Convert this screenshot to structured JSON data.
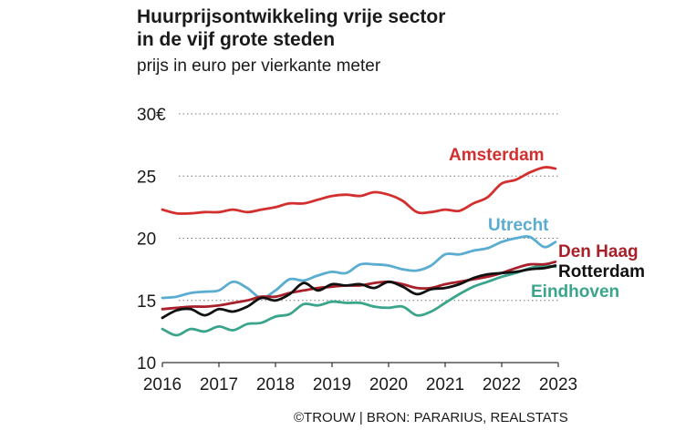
{
  "header": {
    "title_line1": "Huurprijsontwikkeling vrije sector",
    "title_line2": "in de vijf grote steden",
    "subtitle": "prijs in euro per vierkante meter"
  },
  "footer": {
    "credit": "©TROUW | BRON: PARARIUS, REALSTATS"
  },
  "chart_data": {
    "type": "line",
    "title": "Huurprijsontwikkeling vrije sector in de vijf grote steden",
    "subtitle": "prijs in euro per vierkante meter",
    "xlim": [
      2016,
      2023
    ],
    "ylim": [
      10,
      30
    ],
    "x_ticks": [
      "2016",
      "2017",
      "2018",
      "2019",
      "2020",
      "2021",
      "2022",
      "2023"
    ],
    "y_ticks": [
      {
        "value": 30,
        "label": "30€"
      },
      {
        "value": 25,
        "label": "25"
      },
      {
        "value": 20,
        "label": "20"
      },
      {
        "value": 15,
        "label": "15"
      },
      {
        "value": 10,
        "label": "10"
      }
    ],
    "grid": "horizontal dotted",
    "legend": "inline labels at line ends",
    "series": [
      {
        "name": "Amsterdam",
        "color": "#d32f2f",
        "x": [
          2016,
          2016.25,
          2016.5,
          2016.75,
          2017,
          2017.25,
          2017.5,
          2017.75,
          2018,
          2018.25,
          2018.5,
          2018.75,
          2019,
          2019.25,
          2019.5,
          2019.75,
          2020,
          2020.25,
          2020.5,
          2020.75,
          2021,
          2021.25,
          2021.5,
          2021.75,
          2022,
          2022.25,
          2022.5,
          2022.75,
          2022.95
        ],
        "values": [
          22.3,
          22.0,
          22.0,
          22.1,
          22.1,
          22.3,
          22.1,
          22.3,
          22.5,
          22.8,
          22.8,
          23.1,
          23.4,
          23.5,
          23.4,
          23.7,
          23.5,
          23.0,
          22.1,
          22.1,
          22.3,
          22.2,
          22.8,
          23.3,
          24.4,
          24.7,
          25.3,
          25.7,
          25.6
        ]
      },
      {
        "name": "Utrecht",
        "color": "#5aacd0",
        "x": [
          2016,
          2016.25,
          2016.5,
          2016.75,
          2017,
          2017.25,
          2017.5,
          2017.75,
          2018,
          2018.25,
          2018.5,
          2018.75,
          2019,
          2019.25,
          2019.5,
          2019.75,
          2020,
          2020.25,
          2020.5,
          2020.75,
          2021,
          2021.25,
          2021.5,
          2021.75,
          2022,
          2022.25,
          2022.5,
          2022.75,
          2022.95
        ],
        "values": [
          15.2,
          15.3,
          15.6,
          15.7,
          15.8,
          16.5,
          16.0,
          15.2,
          15.8,
          16.7,
          16.6,
          17.0,
          17.3,
          17.2,
          17.9,
          17.9,
          17.8,
          17.5,
          17.4,
          17.8,
          18.7,
          18.7,
          19.0,
          19.2,
          19.7,
          20.0,
          20.1,
          19.3,
          19.7
        ]
      },
      {
        "name": "Den Haag",
        "color": "#a8202a",
        "x": [
          2016,
          2016.25,
          2016.5,
          2016.75,
          2017,
          2017.25,
          2017.5,
          2017.75,
          2018,
          2018.25,
          2018.5,
          2018.75,
          2019,
          2019.25,
          2019.5,
          2019.75,
          2020,
          2020.25,
          2020.5,
          2020.75,
          2021,
          2021.25,
          2021.5,
          2021.75,
          2022,
          2022.25,
          2022.5,
          2022.75,
          2022.95
        ],
        "values": [
          14.3,
          14.4,
          14.5,
          14.5,
          14.6,
          14.8,
          15.0,
          15.3,
          15.3,
          15.6,
          15.8,
          16.0,
          16.1,
          16.2,
          16.2,
          16.4,
          16.5,
          16.3,
          16.0,
          16.0,
          16.3,
          16.5,
          16.7,
          16.9,
          17.2,
          17.6,
          17.9,
          17.9,
          18.1
        ]
      },
      {
        "name": "Rotterdam",
        "color": "#111111",
        "x": [
          2016,
          2016.25,
          2016.5,
          2016.75,
          2017,
          2017.25,
          2017.5,
          2017.75,
          2018,
          2018.25,
          2018.5,
          2018.75,
          2019,
          2019.25,
          2019.5,
          2019.75,
          2020,
          2020.25,
          2020.5,
          2020.75,
          2021,
          2021.25,
          2021.5,
          2021.75,
          2022,
          2022.25,
          2022.5,
          2022.75,
          2022.95
        ],
        "values": [
          13.6,
          14.2,
          14.3,
          13.8,
          14.3,
          14.1,
          14.5,
          15.2,
          15.0,
          15.5,
          16.4,
          15.8,
          16.3,
          16.2,
          16.3,
          16.0,
          16.5,
          16.1,
          15.5,
          15.9,
          16.0,
          16.3,
          16.8,
          17.1,
          17.2,
          17.3,
          17.5,
          17.6,
          17.8
        ]
      },
      {
        "name": "Eindhoven",
        "color": "#3aa58a",
        "x": [
          2016,
          2016.25,
          2016.5,
          2016.75,
          2017,
          2017.25,
          2017.5,
          2017.75,
          2018,
          2018.25,
          2018.5,
          2018.75,
          2019,
          2019.25,
          2019.5,
          2019.75,
          2020,
          2020.25,
          2020.5,
          2020.75,
          2021,
          2021.25,
          2021.5,
          2021.75,
          2022,
          2022.25,
          2022.5,
          2022.75,
          2022.95
        ],
        "values": [
          12.7,
          12.2,
          12.7,
          12.5,
          12.9,
          12.6,
          13.1,
          13.2,
          13.7,
          13.9,
          14.7,
          14.6,
          14.9,
          14.8,
          14.8,
          14.5,
          14.4,
          14.5,
          13.8,
          14.1,
          14.8,
          15.5,
          16.1,
          16.5,
          16.9,
          17.2,
          17.6,
          17.8,
          17.7
        ]
      }
    ]
  }
}
